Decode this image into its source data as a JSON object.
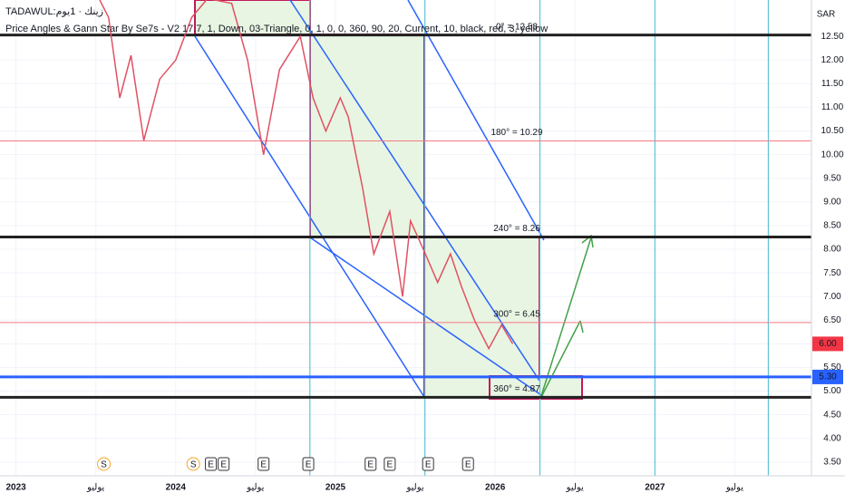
{
  "chart_data": {
    "type": "line",
    "symbol": "TADAWUL:زينك · 1يوم",
    "indicator": "Price Angles & Gann Star By Se7s - V2 17.7, 1, Down, 03-Triangle, 0, 1, 0, 0, 360, 90, 20, Current, 10, black, red, 3, yellow",
    "currency": "SAR",
    "x": [
      2023.52,
      2023.58,
      2023.65,
      2023.72,
      2023.8,
      2023.9,
      2024.0,
      2024.1,
      2024.2,
      2024.35,
      2024.45,
      2024.55,
      2024.65,
      2024.78,
      2024.86,
      2024.94,
      2025.03,
      2025.08,
      2025.17,
      2025.24,
      2025.34,
      2025.42,
      2025.47,
      2025.55,
      2025.64,
      2025.72,
      2025.79,
      2025.87,
      2025.96,
      2026.04,
      2026.11
    ],
    "series": [
      {
        "name": "Price",
        "color": "#e05263",
        "values": [
          13.3,
          12.9,
          11.2,
          12.1,
          10.3,
          11.6,
          12.0,
          12.9,
          13.3,
          13.2,
          12.0,
          10.0,
          11.8,
          12.5,
          11.2,
          10.5,
          11.2,
          10.8,
          9.3,
          7.9,
          8.8,
          7.0,
          8.6,
          8.0,
          7.3,
          7.9,
          7.2,
          6.5,
          5.9,
          6.4,
          6.0
        ]
      }
    ],
    "xlim": [
      2022.9,
      2027.98
    ],
    "xticks": [
      2023,
      {
        "value": 2023.5,
        "label": "يوليو"
      },
      2024,
      {
        "value": 2024.5,
        "label": "يوليو"
      },
      2025,
      {
        "value": 2025.5,
        "label": "يوليو"
      },
      2026,
      {
        "value": 2026.5,
        "label": "يوليو"
      },
      2027,
      {
        "value": 2027.5,
        "label": "يوليو"
      }
    ],
    "ylim": [
      3.21,
      13.27
    ],
    "yticks": [
      {
        "value": 3.5,
        "label": "3.50"
      },
      {
        "value": 4,
        "label": "4.00"
      },
      {
        "value": 4.5,
        "label": "4.50"
      },
      {
        "value": 5,
        "label": "5.00"
      },
      {
        "value": 5.5,
        "label": "5.50"
      },
      {
        "value": 6,
        "label": "6.00"
      },
      {
        "value": 6.5,
        "label": "6.50"
      },
      {
        "value": 7,
        "label": "7.00"
      },
      {
        "value": 7.5,
        "label": "7.50"
      },
      {
        "value": 8,
        "label": "8.00"
      },
      {
        "value": 8.5,
        "label": "8.50"
      },
      {
        "value": 9,
        "label": "9.00"
      },
      {
        "value": 9.5,
        "label": "9.50"
      },
      {
        "value": 10,
        "label": "10.00"
      },
      {
        "value": 10.5,
        "label": "10.50"
      },
      {
        "value": 11,
        "label": "11.00"
      },
      {
        "value": 11.5,
        "label": "11.50"
      },
      {
        "value": 12,
        "label": "12.00"
      },
      {
        "value": 12.5,
        "label": "12.50"
      }
    ],
    "levels": [
      {
        "value": 12.53,
        "label": "0° = 12.53",
        "color": "#222222",
        "width": 3
      },
      {
        "value": 10.29,
        "label": "180° = 10.29",
        "color": "#f27a84",
        "width": 1
      },
      {
        "value": 8.26,
        "label": "240° = 8.26",
        "color": "#222222",
        "width": 3
      },
      {
        "value": 6.45,
        "label": "300° = 6.45",
        "color": "#f27a84",
        "width": 1
      },
      {
        "value": 5.3,
        "label": "",
        "color": "#2962ff",
        "width": 3
      },
      {
        "value": 4.87,
        "label": "360° = 4.87",
        "color": "#222222",
        "width": 3
      }
    ],
    "verticals": [
      2024.84,
      2025.56,
      2026.28,
      2027.0,
      2027.71
    ],
    "price_tags": [
      {
        "value": 6,
        "label": "6.00",
        "color": "#f23645"
      },
      {
        "value": 5.3,
        "label": "5.30",
        "color": "#2962ff"
      }
    ],
    "events": [
      {
        "x": 2023.55,
        "label": "S"
      },
      {
        "x": 2024.11,
        "label": "S"
      },
      {
        "x": 2024.22,
        "label": "E"
      },
      {
        "x": 2024.3,
        "label": "E"
      },
      {
        "x": 2024.55,
        "label": "E"
      },
      {
        "x": 2024.83,
        "label": "E"
      },
      {
        "x": 2025.22,
        "label": "E"
      },
      {
        "x": 2025.34,
        "label": "E"
      },
      {
        "x": 2025.58,
        "label": "E"
      },
      {
        "x": 2025.83,
        "label": "E"
      }
    ]
  }
}
